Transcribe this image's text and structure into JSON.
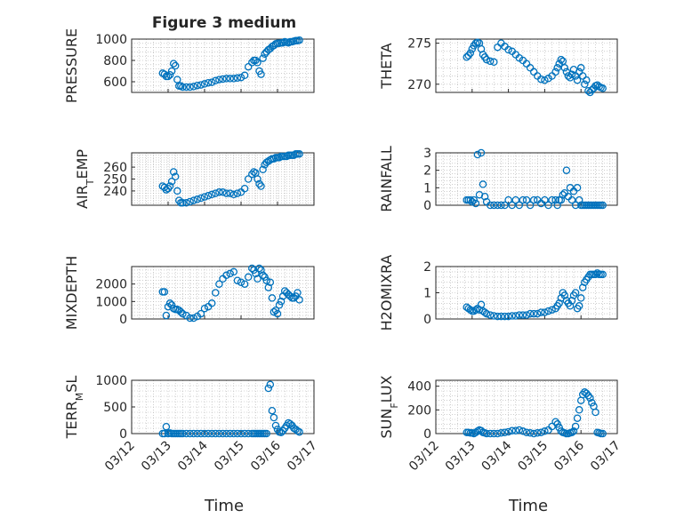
{
  "figure": {
    "title": "Figure 3 medium",
    "x_label": "Time",
    "series_color": "#0072BD",
    "axis_color": "#262626",
    "grid_color": "#b0b0b0"
  },
  "x_axis": {
    "ticks": [
      0,
      1,
      2,
      3,
      4,
      5
    ],
    "tick_labels": [
      "03/12",
      "03/13",
      "03/14",
      "03/15",
      "03/16",
      "03/17"
    ],
    "range": [
      0,
      5
    ],
    "unit": "days from 03/12"
  },
  "chart_data": [
    {
      "type": "scatter",
      "ylabel_parts": [
        "PRESSURE"
      ],
      "ylim": [
        500,
        1000
      ],
      "yticks": [
        600,
        800,
        1000
      ],
      "ytick_labels": [
        "600",
        "800",
        "1000"
      ],
      "grid": true,
      "marker": "o",
      "x": [
        0.85,
        0.9,
        0.95,
        1.0,
        1.05,
        1.1,
        1.15,
        1.2,
        1.25,
        1.3,
        1.35,
        1.4,
        1.5,
        1.6,
        1.7,
        1.8,
        1.9,
        2.0,
        2.1,
        2.2,
        2.3,
        2.4,
        2.5,
        2.6,
        2.7,
        2.8,
        2.9,
        3.0,
        3.1,
        3.2,
        3.3,
        3.35,
        3.4,
        3.45,
        3.5,
        3.55,
        3.6,
        3.65,
        3.7,
        3.75,
        3.8,
        3.85,
        3.9,
        3.95,
        4.0,
        4.05,
        4.1,
        4.15,
        4.2,
        4.25,
        4.3,
        4.35,
        4.4,
        4.45,
        4.5,
        4.55,
        4.6
      ],
      "y": [
        680,
        670,
        650,
        650,
        665,
        700,
        770,
        750,
        620,
        560,
        560,
        550,
        550,
        550,
        555,
        565,
        570,
        580,
        590,
        595,
        610,
        620,
        625,
        630,
        630,
        630,
        635,
        640,
        660,
        740,
        780,
        800,
        800,
        780,
        700,
        670,
        820,
        860,
        880,
        900,
        910,
        930,
        940,
        955,
        960,
        960,
        965,
        965,
        975,
        970,
        965,
        975,
        975,
        980,
        985,
        985,
        990
      ]
    },
    {
      "type": "scatter",
      "ylabel_parts": [
        "THETA"
      ],
      "ylim": [
        269,
        275.5
      ],
      "yticks": [
        270,
        275
      ],
      "ytick_labels": [
        "270",
        "275"
      ],
      "grid": true,
      "marker": "o",
      "x": [
        0.85,
        0.9,
        0.95,
        1.0,
        1.05,
        1.1,
        1.15,
        1.2,
        1.25,
        1.3,
        1.35,
        1.4,
        1.5,
        1.6,
        1.7,
        1.8,
        1.9,
        2.0,
        2.1,
        2.2,
        2.3,
        2.4,
        2.5,
        2.6,
        2.7,
        2.8,
        2.9,
        3.0,
        3.1,
        3.2,
        3.3,
        3.35,
        3.4,
        3.45,
        3.5,
        3.55,
        3.6,
        3.65,
        3.7,
        3.75,
        3.8,
        3.85,
        3.9,
        3.95,
        4.0,
        4.05,
        4.1,
        4.15,
        4.2,
        4.25,
        4.3,
        4.35,
        4.4,
        4.45,
        4.5,
        4.55,
        4.6
      ],
      "y": [
        273.3,
        273.5,
        273.8,
        274.3,
        274.7,
        275.0,
        275.1,
        275.0,
        274.3,
        273.6,
        273.3,
        273.0,
        272.8,
        272.7,
        274.5,
        275.0,
        274.6,
        274.2,
        274.0,
        273.6,
        273.2,
        272.9,
        272.5,
        272.0,
        271.5,
        271.0,
        270.6,
        270.5,
        270.7,
        271.0,
        271.5,
        272.0,
        272.5,
        273.0,
        272.8,
        272.0,
        271.5,
        271.0,
        270.8,
        271.2,
        271.8,
        271.0,
        270.5,
        271.5,
        272.0,
        271.0,
        270.0,
        270.5,
        269.2,
        269.0,
        269.3,
        269.5,
        269.8,
        269.9,
        269.7,
        269.6,
        269.5
      ]
    },
    {
      "type": "scatter",
      "ylabel_parts": [
        "AIR",
        "T",
        "EMP"
      ],
      "ylim": [
        228,
        272
      ],
      "yticks": [
        240,
        250,
        260
      ],
      "ytick_labels": [
        "240",
        "250",
        "260"
      ],
      "grid": true,
      "marker": "o",
      "x": [
        0.85,
        0.9,
        0.95,
        1.0,
        1.05,
        1.1,
        1.15,
        1.2,
        1.25,
        1.3,
        1.35,
        1.4,
        1.5,
        1.6,
        1.7,
        1.8,
        1.9,
        2.0,
        2.1,
        2.2,
        2.3,
        2.4,
        2.5,
        2.6,
        2.7,
        2.8,
        2.9,
        3.0,
        3.1,
        3.2,
        3.3,
        3.35,
        3.4,
        3.45,
        3.5,
        3.55,
        3.6,
        3.65,
        3.7,
        3.75,
        3.8,
        3.85,
        3.9,
        3.95,
        4.0,
        4.05,
        4.1,
        4.15,
        4.2,
        4.25,
        4.3,
        4.35,
        4.4,
        4.45,
        4.5,
        4.55,
        4.6
      ],
      "y": [
        244,
        243,
        241,
        242,
        244,
        248,
        256,
        252,
        240,
        232,
        230,
        230,
        230,
        231,
        232,
        233,
        234,
        235,
        236,
        237,
        238,
        239,
        239,
        238,
        238,
        237,
        238,
        239,
        242,
        250,
        254,
        256,
        255,
        250,
        246,
        244,
        258,
        262,
        264,
        265,
        266,
        267,
        267,
        268,
        268,
        268,
        269,
        269,
        269,
        269,
        270,
        270,
        270,
        270,
        271,
        271,
        271
      ]
    },
    {
      "type": "scatter",
      "ylabel_parts": [
        "RAINFALL"
      ],
      "ylim": [
        0,
        3
      ],
      "yticks": [
        0,
        1,
        2,
        3
      ],
      "ytick_labels": [
        "0",
        "1",
        "2",
        "3"
      ],
      "grid": true,
      "marker": "o",
      "x": [
        0.85,
        0.9,
        0.95,
        1.0,
        1.05,
        1.1,
        1.15,
        1.2,
        1.25,
        1.3,
        1.35,
        1.4,
        1.5,
        1.6,
        1.7,
        1.8,
        1.9,
        2.0,
        2.1,
        2.2,
        2.3,
        2.4,
        2.5,
        2.6,
        2.7,
        2.8,
        2.9,
        3.0,
        3.1,
        3.2,
        3.3,
        3.35,
        3.4,
        3.45,
        3.5,
        3.55,
        3.6,
        3.65,
        3.7,
        3.75,
        3.8,
        3.85,
        3.9,
        3.95,
        4.0,
        4.05,
        4.1,
        4.15,
        4.2,
        4.25,
        4.3,
        4.35,
        4.4,
        4.45,
        4.5,
        4.55,
        4.6
      ],
      "y": [
        0.3,
        0.3,
        0.3,
        0.2,
        0.3,
        0.1,
        2.9,
        0.6,
        3.0,
        1.2,
        0.5,
        0.2,
        0.0,
        0.0,
        0.0,
        0.0,
        0.0,
        0.3,
        0.0,
        0.3,
        0.0,
        0.3,
        0.3,
        0.0,
        0.3,
        0.3,
        0.1,
        0.3,
        0.0,
        0.3,
        0.3,
        0.0,
        0.3,
        0.3,
        0.6,
        0.7,
        2.0,
        0.5,
        1.0,
        0.3,
        0.8,
        0.0,
        1.0,
        0.3,
        0.0,
        0.0,
        0.0,
        0.0,
        0.0,
        0.0,
        0.0,
        0.0,
        0.0,
        0.0,
        0.0,
        0.0,
        0.0
      ]
    },
    {
      "type": "scatter",
      "ylabel_parts": [
        "MIXDEPTH"
      ],
      "ylim": [
        0,
        3000
      ],
      "yticks": [
        0,
        1000,
        2000
      ],
      "ytick_labels": [
        "0",
        "1000",
        "2000"
      ],
      "grid": true,
      "marker": "o",
      "x": [
        0.85,
        0.9,
        0.95,
        1.0,
        1.05,
        1.1,
        1.15,
        1.2,
        1.25,
        1.3,
        1.35,
        1.4,
        1.5,
        1.6,
        1.7,
        1.8,
        1.9,
        2.0,
        2.1,
        2.2,
        2.3,
        2.4,
        2.5,
        2.6,
        2.7,
        2.8,
        2.9,
        3.0,
        3.1,
        3.2,
        3.3,
        3.35,
        3.4,
        3.45,
        3.5,
        3.55,
        3.6,
        3.65,
        3.7,
        3.75,
        3.8,
        3.85,
        3.9,
        3.95,
        4.0,
        4.05,
        4.1,
        4.15,
        4.2,
        4.25,
        4.3,
        4.35,
        4.4,
        4.45,
        4.5,
        4.55,
        4.6
      ],
      "y": [
        1550,
        1550,
        200,
        700,
        900,
        800,
        600,
        550,
        550,
        500,
        400,
        300,
        200,
        50,
        50,
        150,
        300,
        600,
        700,
        900,
        1500,
        2000,
        2300,
        2500,
        2600,
        2700,
        2200,
        2100,
        2000,
        2400,
        2900,
        2800,
        2600,
        2300,
        2900,
        2800,
        2500,
        2400,
        2200,
        1800,
        2100,
        1200,
        400,
        500,
        300,
        800,
        1000,
        1300,
        1600,
        1500,
        1400,
        1300,
        1200,
        1200,
        1300,
        1500,
        1100
      ]
    },
    {
      "type": "scatter",
      "ylabel_parts": [
        "H2OMIXRA"
      ],
      "ylim": [
        0,
        2
      ],
      "yticks": [
        0,
        1,
        2
      ],
      "ytick_labels": [
        "0",
        "1",
        "2"
      ],
      "grid": true,
      "marker": "o",
      "x": [
        0.85,
        0.9,
        0.95,
        1.0,
        1.05,
        1.1,
        1.15,
        1.2,
        1.25,
        1.3,
        1.35,
        1.4,
        1.5,
        1.6,
        1.7,
        1.8,
        1.9,
        2.0,
        2.1,
        2.2,
        2.3,
        2.4,
        2.5,
        2.6,
        2.7,
        2.8,
        2.9,
        3.0,
        3.1,
        3.2,
        3.3,
        3.35,
        3.4,
        3.45,
        3.5,
        3.55,
        3.6,
        3.65,
        3.7,
        3.75,
        3.8,
        3.85,
        3.9,
        3.95,
        4.0,
        4.05,
        4.1,
        4.15,
        4.2,
        4.25,
        4.3,
        4.35,
        4.4,
        4.45,
        4.5,
        4.55,
        4.6
      ],
      "y": [
        0.45,
        0.4,
        0.35,
        0.3,
        0.3,
        0.35,
        0.4,
        0.35,
        0.55,
        0.3,
        0.25,
        0.2,
        0.15,
        0.12,
        0.1,
        0.1,
        0.1,
        0.1,
        0.12,
        0.12,
        0.15,
        0.15,
        0.15,
        0.2,
        0.2,
        0.2,
        0.25,
        0.25,
        0.3,
        0.35,
        0.4,
        0.5,
        0.6,
        0.8,
        1.0,
        0.9,
        0.7,
        0.6,
        0.5,
        0.7,
        0.9,
        1.0,
        0.4,
        0.5,
        0.8,
        1.2,
        1.4,
        1.5,
        1.6,
        1.7,
        1.7,
        1.7,
        1.7,
        1.75,
        1.7,
        1.7,
        1.7
      ]
    },
    {
      "type": "scatter",
      "ylabel_parts": [
        "TERR",
        "M",
        "SL"
      ],
      "ylim": [
        0,
        1000
      ],
      "yticks": [
        0,
        500,
        1000
      ],
      "ytick_labels": [
        "0",
        "500",
        "1000"
      ],
      "grid": true,
      "marker": "o",
      "x": [
        0.85,
        0.9,
        0.95,
        1.0,
        1.05,
        1.1,
        1.15,
        1.2,
        1.25,
        1.3,
        1.35,
        1.4,
        1.5,
        1.6,
        1.7,
        1.8,
        1.9,
        2.0,
        2.1,
        2.2,
        2.3,
        2.4,
        2.5,
        2.6,
        2.7,
        2.8,
        2.9,
        3.0,
        3.1,
        3.2,
        3.3,
        3.35,
        3.4,
        3.45,
        3.5,
        3.55,
        3.6,
        3.65,
        3.7,
        3.75,
        3.8,
        3.85,
        3.9,
        3.95,
        4.0,
        4.05,
        4.1,
        4.15,
        4.2,
        4.25,
        4.3,
        4.35,
        4.4,
        4.45,
        4.5,
        4.55,
        4.6
      ],
      "y": [
        0,
        0,
        130,
        0,
        10,
        0,
        0,
        0,
        0,
        0,
        0,
        0,
        0,
        0,
        0,
        0,
        0,
        0,
        0,
        0,
        0,
        0,
        0,
        0,
        0,
        0,
        0,
        0,
        0,
        0,
        0,
        0,
        0,
        0,
        0,
        0,
        0,
        0,
        0,
        850,
        920,
        430,
        300,
        150,
        80,
        30,
        20,
        50,
        100,
        150,
        200,
        180,
        150,
        100,
        80,
        50,
        30
      ]
    },
    {
      "type": "scatter",
      "ylabel_parts": [
        "SUN",
        "F",
        "LUX"
      ],
      "ylim": [
        0,
        450
      ],
      "yticks": [
        0,
        200,
        400
      ],
      "ytick_labels": [
        "0",
        "200",
        "400"
      ],
      "grid": true,
      "marker": "o",
      "x": [
        0.85,
        0.9,
        0.95,
        1.0,
        1.05,
        1.1,
        1.15,
        1.2,
        1.25,
        1.3,
        1.35,
        1.4,
        1.5,
        1.6,
        1.7,
        1.8,
        1.9,
        2.0,
        2.1,
        2.2,
        2.3,
        2.4,
        2.5,
        2.6,
        2.7,
        2.8,
        2.9,
        3.0,
        3.1,
        3.2,
        3.3,
        3.35,
        3.4,
        3.45,
        3.5,
        3.55,
        3.6,
        3.65,
        3.7,
        3.75,
        3.8,
        3.85,
        3.9,
        3.95,
        4.0,
        4.05,
        4.1,
        4.15,
        4.2,
        4.25,
        4.3,
        4.35,
        4.4,
        4.45,
        4.5,
        4.55,
        4.6
      ],
      "y": [
        10,
        10,
        5,
        5,
        0,
        10,
        20,
        30,
        25,
        10,
        5,
        0,
        0,
        0,
        0,
        5,
        10,
        15,
        25,
        25,
        30,
        20,
        10,
        5,
        0,
        5,
        10,
        20,
        30,
        60,
        100,
        80,
        50,
        20,
        10,
        5,
        0,
        0,
        5,
        10,
        20,
        60,
        130,
        200,
        280,
        330,
        350,
        340,
        320,
        300,
        260,
        230,
        180,
        10,
        5,
        0,
        0
      ]
    }
  ]
}
